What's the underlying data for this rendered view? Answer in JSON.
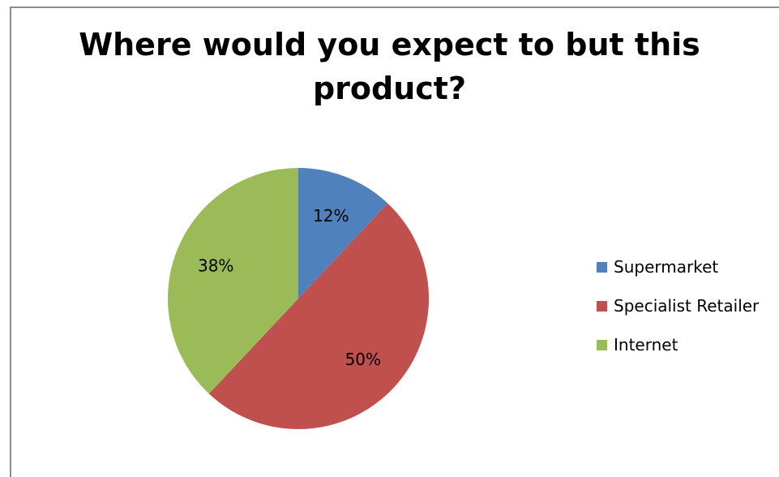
{
  "chart_data": {
    "type": "pie",
    "title_lines": [
      "Where would you expect to but this",
      "product?"
    ],
    "categories": [
      "Supermarket",
      "Specialist Retailer",
      "Internet"
    ],
    "values": [
      12,
      50,
      38
    ],
    "data_labels": [
      "12%",
      "50%",
      "38%"
    ],
    "colors": [
      "#4f81bd",
      "#c0504d",
      "#9bbb59"
    ],
    "legend_position": "right"
  }
}
